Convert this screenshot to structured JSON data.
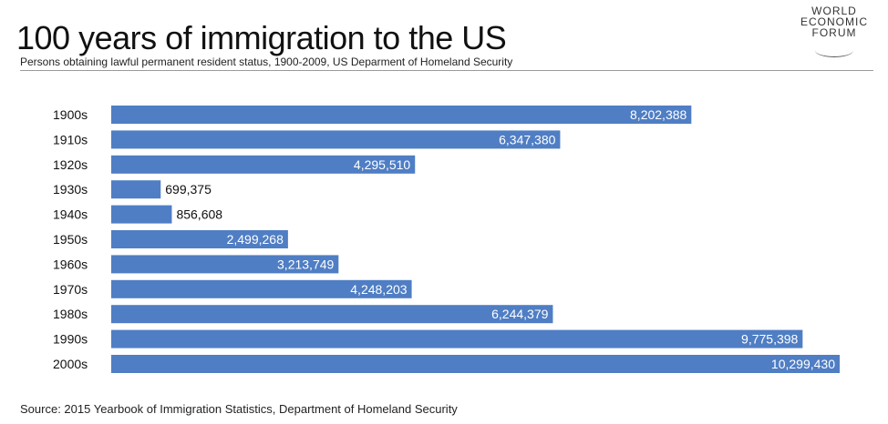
{
  "header": {
    "title": "100 years of immigration to the US",
    "subtitle": "Persons obtaining lawful permanent resident status, 1900-2009, US Deparment of Homeland Security"
  },
  "logo": {
    "line1": "WORLD",
    "line2": "ECONOMIC",
    "line3": "FORUM"
  },
  "footer": {
    "source": "Source: 2015 Yearbook of Immigration Statistics, Department of Homeland Security"
  },
  "colors": {
    "bar": "#4F7EC4",
    "label_inside": "#FFFFFF",
    "label_outside": "#111111"
  },
  "chart_data": {
    "type": "bar",
    "orientation": "horizontal",
    "categories": [
      "1900s",
      "1910s",
      "1920s",
      "1930s",
      "1940s",
      "1950s",
      "1960s",
      "1970s",
      "1980s",
      "1990s",
      "2000s"
    ],
    "values": [
      8202388,
      6347380,
      4295510,
      699375,
      856608,
      2499268,
      3213749,
      4248203,
      6244379,
      9775398,
      10299430
    ],
    "value_labels": [
      "8,202,388",
      "6,347,380",
      "4,295,510",
      "699,375",
      "856,608",
      "2,499,268",
      "3,213,749",
      "4,248,203",
      "6,244,379",
      "9,775,398",
      "10,299,430"
    ],
    "title": "100 years of immigration to the US",
    "subtitle": "Persons obtaining lawful permanent resident status, 1900-2009, US Deparment of Homeland Security",
    "xlabel": "",
    "ylabel": "",
    "xlim": [
      0,
      10299430
    ],
    "grid": false,
    "legend": "none"
  }
}
